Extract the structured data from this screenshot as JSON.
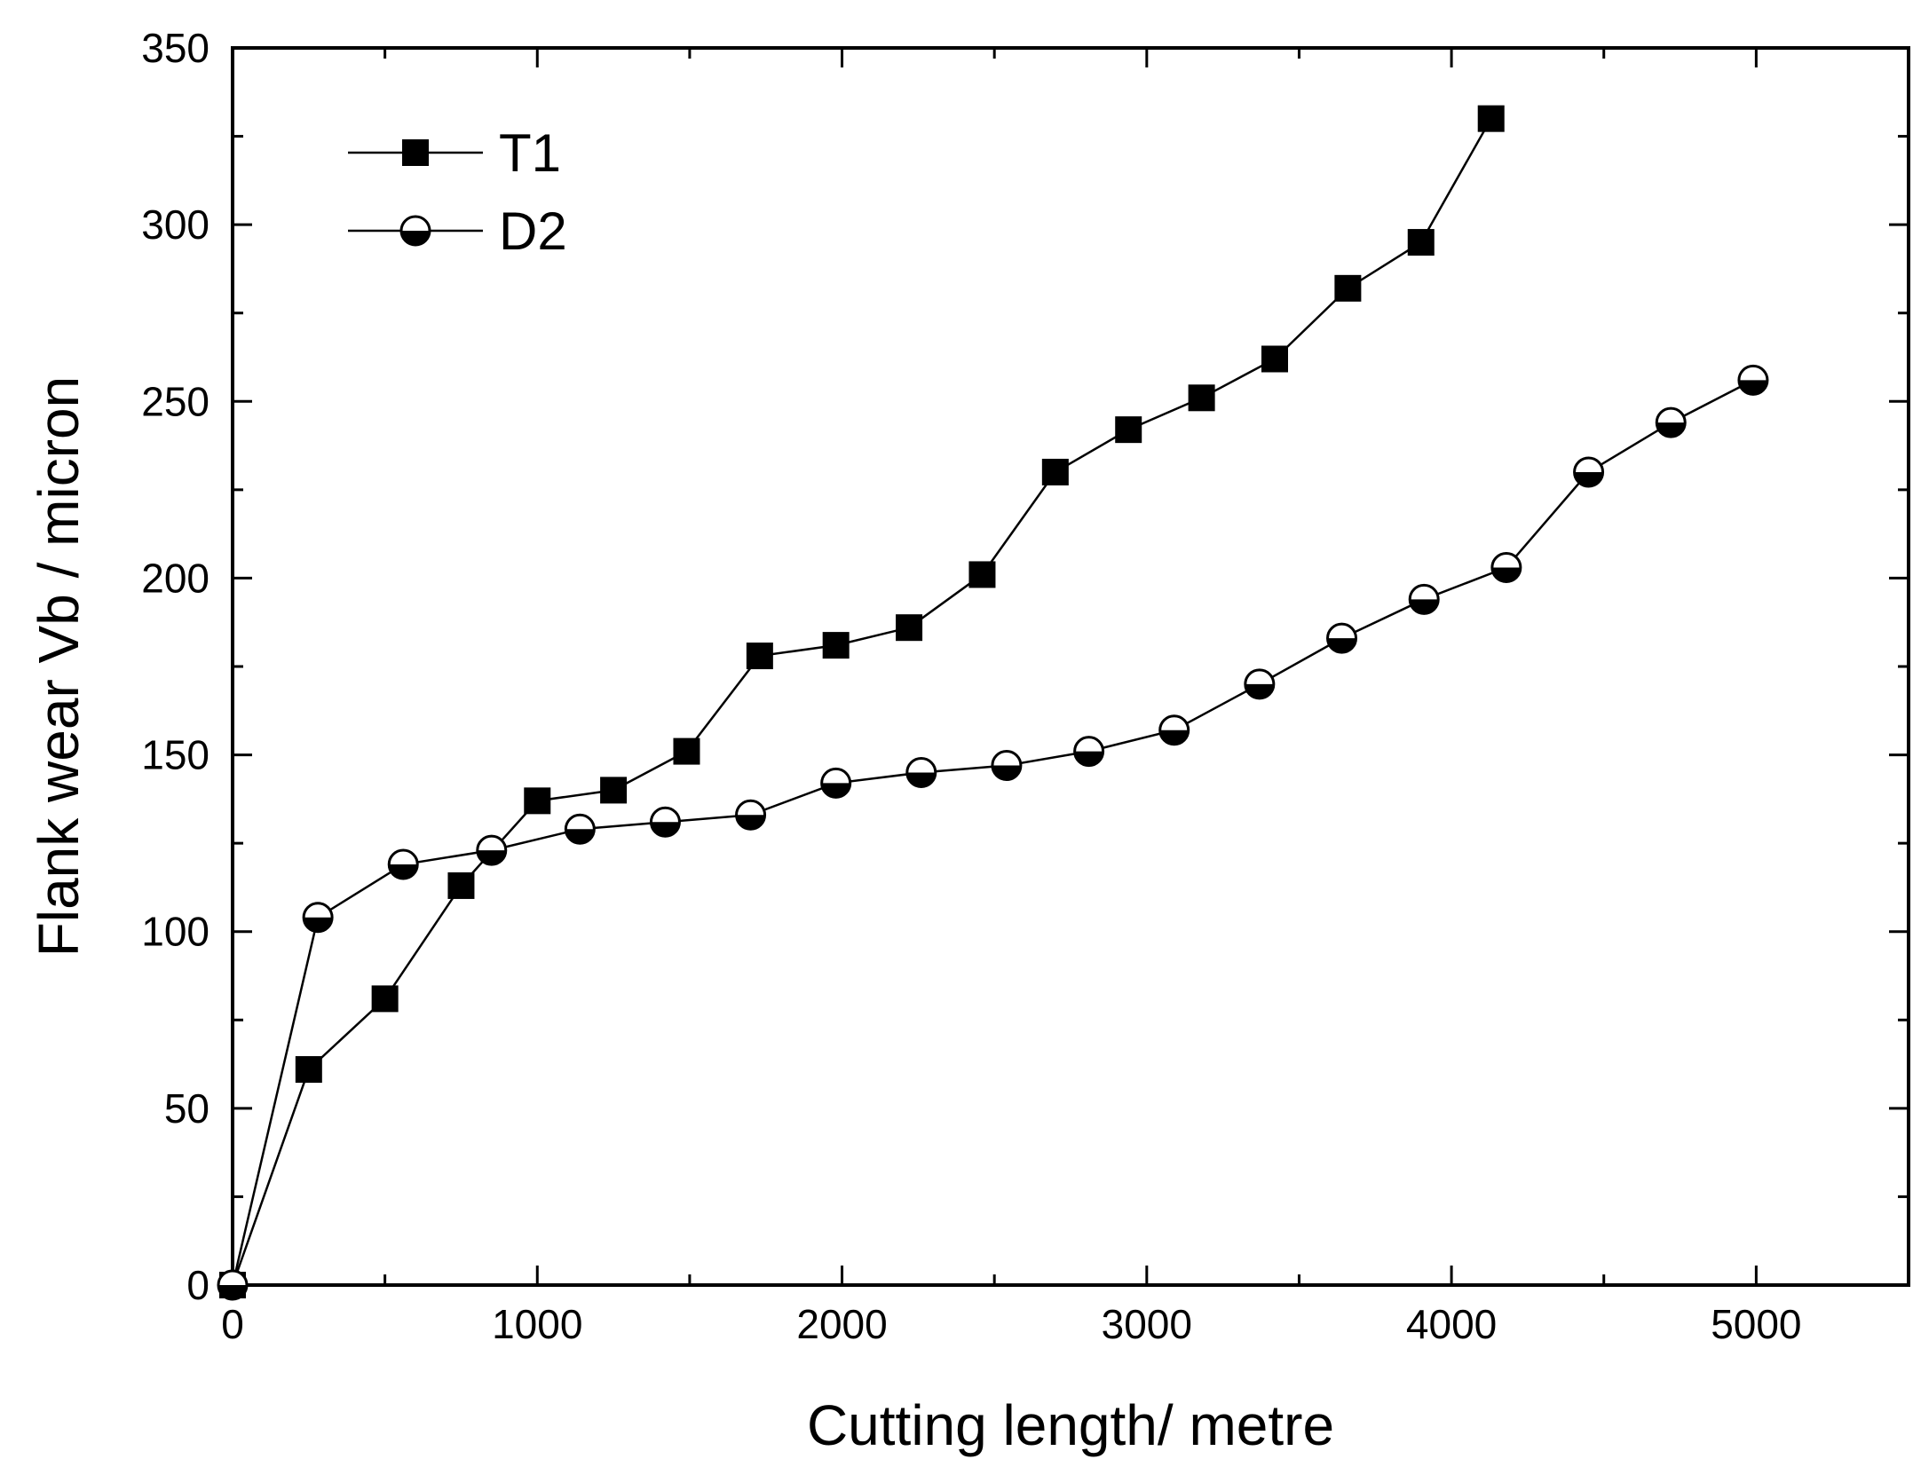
{
  "chart_data": {
    "type": "line",
    "title": "",
    "xlabel": "Cutting length/ metre",
    "ylabel": "Flank wear Vb / micron",
    "xlim": [
      0,
      5500
    ],
    "ylim": [
      0,
      350
    ],
    "x_ticks": [
      0,
      1000,
      2000,
      3000,
      4000,
      5000
    ],
    "x_minor_ticks": [
      500,
      1500,
      2500,
      3500,
      4500
    ],
    "y_ticks": [
      0,
      50,
      100,
      150,
      200,
      250,
      300,
      350
    ],
    "y_minor_ticks": [
      25,
      75,
      125,
      175,
      225,
      275,
      325
    ],
    "grid": false,
    "legend_position": "top-left",
    "series": [
      {
        "name": "T1",
        "marker": "filled-square",
        "x": [
          0,
          250,
          500,
          750,
          1000,
          1250,
          1490,
          1730,
          1980,
          2220,
          2460,
          2700,
          2940,
          3180,
          3420,
          3660,
          3900,
          4130
        ],
        "y": [
          0,
          61,
          81,
          113,
          137,
          140,
          151,
          178,
          181,
          186,
          201,
          230,
          242,
          251,
          262,
          282,
          295,
          330
        ]
      },
      {
        "name": "D2",
        "marker": "half-filled-circle",
        "x": [
          0,
          280,
          560,
          850,
          1140,
          1420,
          1700,
          1980,
          2260,
          2540,
          2810,
          3090,
          3370,
          3640,
          3910,
          4180,
          4450,
          4720,
          4990
        ],
        "y": [
          0,
          104,
          119,
          123,
          129,
          131,
          133,
          142,
          145,
          147,
          151,
          157,
          170,
          183,
          194,
          203,
          230,
          244,
          256
        ]
      }
    ]
  }
}
